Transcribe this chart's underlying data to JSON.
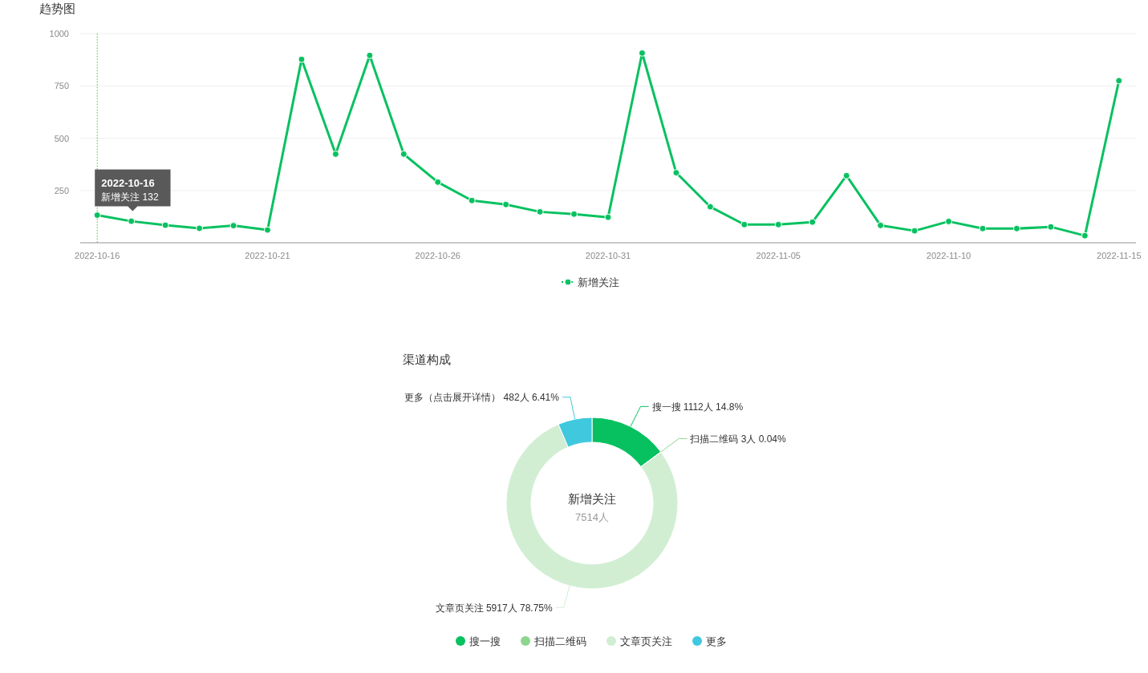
{
  "chart_data": [
    {
      "type": "line",
      "title": "趋势图",
      "x": [
        "2022-10-16",
        "2022-10-17",
        "2022-10-18",
        "2022-10-19",
        "2022-10-20",
        "2022-10-21",
        "2022-10-22",
        "2022-10-23",
        "2022-10-24",
        "2022-10-25",
        "2022-10-26",
        "2022-10-27",
        "2022-10-28",
        "2022-10-29",
        "2022-10-30",
        "2022-10-31",
        "2022-11-01",
        "2022-11-02",
        "2022-11-03",
        "2022-11-04",
        "2022-11-05",
        "2022-11-06",
        "2022-11-07",
        "2022-11-08",
        "2022-11-09",
        "2022-11-10",
        "2022-11-11",
        "2022-11-12",
        "2022-11-13",
        "2022-11-14",
        "2022-11-15"
      ],
      "xlim": [
        "2022-10-15T12:00",
        "2022-11-15T12:00"
      ],
      "xticks": [
        "2022-10-16",
        "2022-10-21",
        "2022-10-26",
        "2022-10-31",
        "2022-11-05",
        "2022-11-10",
        "2022-11-15"
      ],
      "ylim": [
        0,
        1000
      ],
      "yticks": [
        250,
        500,
        750,
        1000
      ],
      "grid": "y",
      "legend": "bottom",
      "marker": "circle",
      "series": [
        {
          "name": "新增关注",
          "color": "#07c160",
          "values": [
            132,
            103,
            84,
            69,
            82,
            61,
            877,
            424,
            896,
            424,
            290,
            202,
            183,
            148,
            137,
            122,
            907,
            335,
            172,
            87,
            87,
            99,
            321,
            83,
            57,
            102,
            68,
            68,
            76,
            34,
            775
          ]
        }
      ],
      "ref_lines": [
        {
          "axis": "x",
          "value": "2022-10-16",
          "color": "#52c41a",
          "line_style": "dotted"
        }
      ],
      "annotations": [
        {
          "text": "2022-10-16\n新增关注 132",
          "x": "2022-10-16",
          "y": 132
        }
      ]
    },
    {
      "type": "donut",
      "title": "渠道构成",
      "categories": [
        "搜一搜",
        "扫描二维码",
        "文章页关注",
        "更多"
      ],
      "values": [
        1112,
        3,
        5917,
        482
      ],
      "colors": [
        "#07c160",
        "#8ed68e",
        "#d1eed3",
        "#40c8df"
      ],
      "value_labels": [
        "搜一搜 1112人 14.8%",
        "扫描二维码 3人 0.04%",
        "文章页关注 5917人 78.75%",
        "更多（点击展开详情） 482人 6.41%"
      ],
      "legend": "bottom",
      "annotations": [
        "新增关注",
        "7514人"
      ]
    }
  ]
}
